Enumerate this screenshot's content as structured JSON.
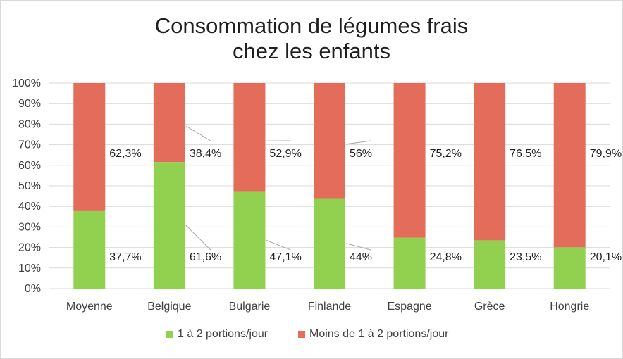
{
  "chart_data": {
    "type": "bar",
    "stacked": true,
    "percent_stacked": true,
    "title": "Consommation de légumes frais",
    "title_line2": "chez les enfants",
    "categories": [
      "Moyenne",
      "Belgique",
      "Bulgarie",
      "Finlande",
      "Espagne",
      "Grèce",
      "Hongrie"
    ],
    "series": [
      {
        "name": "1 à 2 portions/jour",
        "color": "#92d050",
        "values": [
          37.7,
          61.6,
          47.1,
          44,
          24.8,
          23.5,
          20.1
        ],
        "labels": [
          "37,7%",
          "61,6%",
          "47,1%",
          "44%",
          "24,8%",
          "23,5%",
          "20,1%"
        ]
      },
      {
        "name": "Moins de 1 à 2 portions/jour",
        "color": "#e46c5a",
        "values": [
          62.3,
          38.4,
          52.9,
          56,
          75.2,
          76.5,
          79.9
        ],
        "labels": [
          "62,3%",
          "38,4%",
          "52,9%",
          "56%",
          "75,2%",
          "76,5%",
          "79,9%"
        ]
      }
    ],
    "ylim": [
      0,
      100
    ],
    "yticks": [
      "0%",
      "10%",
      "20%",
      "30%",
      "40%",
      "50%",
      "60%",
      "70%",
      "80%",
      "90%",
      "100%"
    ],
    "grid": true,
    "legend_position": "bottom"
  }
}
